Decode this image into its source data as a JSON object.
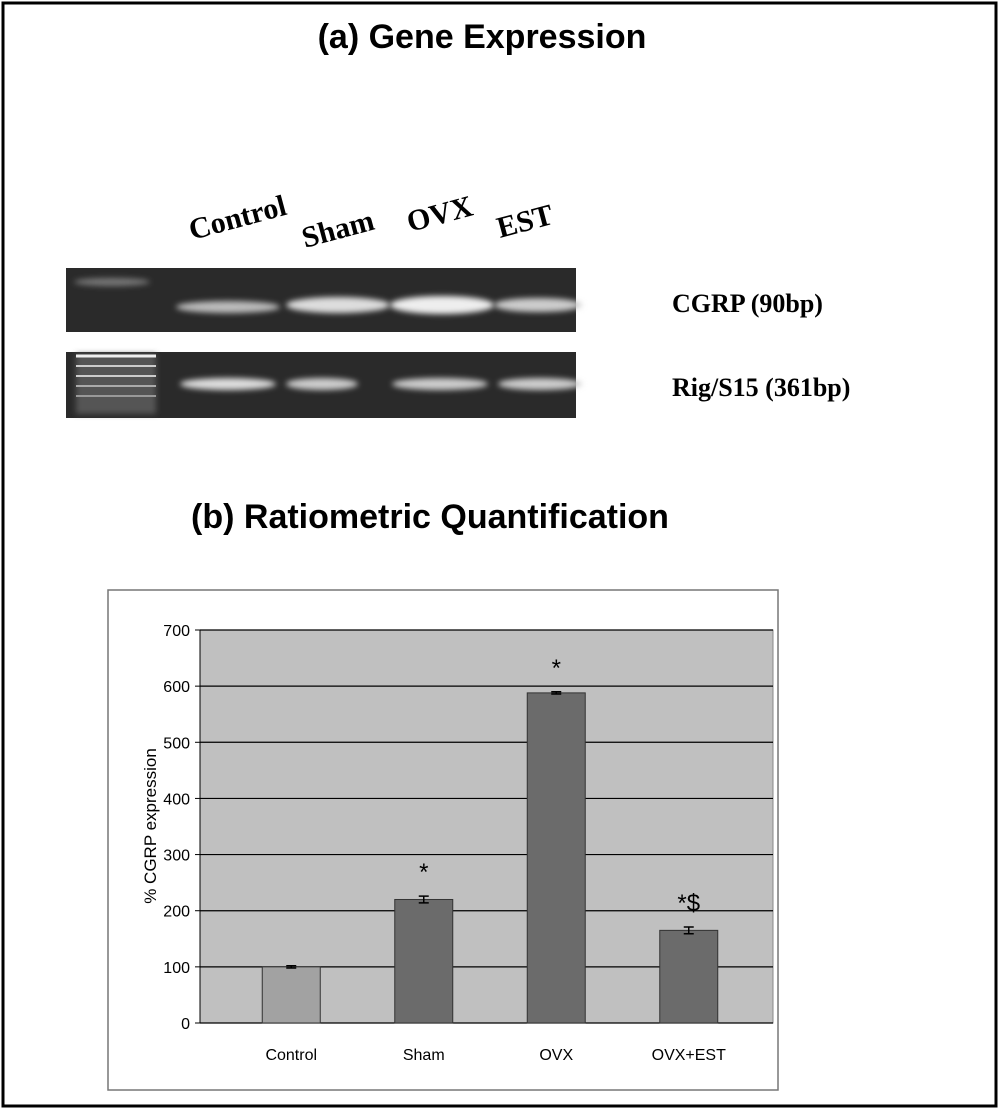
{
  "gel": {
    "title": "(a) Gene Expression",
    "lanes": [
      "Control",
      "Sham",
      "OVX",
      "EST"
    ],
    "bands": [
      "CGRP (90bp)",
      "Rig/S15 (361bp)"
    ]
  },
  "chart_data": {
    "type": "bar",
    "title": "(b) Ratiometric Quantification",
    "y_label": "% CGRP expression",
    "categories": [
      "Control",
      "Sham",
      "OVX",
      "OVX+EST"
    ],
    "values": [
      100,
      220,
      588,
      165
    ],
    "errors": [
      2,
      6,
      2,
      6
    ],
    "annotations": [
      null,
      "*",
      "*",
      "*$"
    ],
    "colors": [
      "#a2a2a2",
      "#6b6b6b",
      "#6b6b6b",
      "#6b6b6b"
    ],
    "ylim": [
      0,
      700
    ],
    "yticks": [
      0,
      100,
      200,
      300,
      400,
      500,
      600,
      700
    ],
    "grid": true
  }
}
